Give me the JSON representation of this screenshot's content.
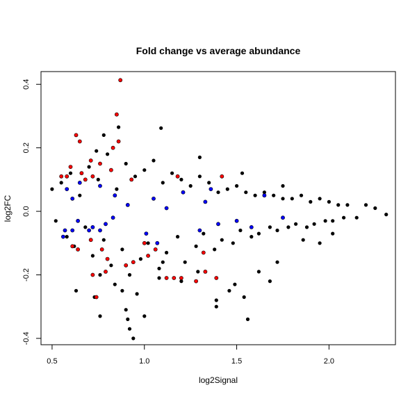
{
  "chart_data": {
    "type": "scatter",
    "title": "Fold change vs average abundance",
    "xlabel": "log2Signal",
    "ylabel": "log2FC",
    "xlim": [
      0.44,
      2.36
    ],
    "ylim": [
      -0.42,
      0.44
    ],
    "x_ticks": [
      {
        "value": 0.5,
        "label": "0.5"
      },
      {
        "value": 1.0,
        "label": "1.0"
      },
      {
        "value": 1.5,
        "label": "1.5"
      },
      {
        "value": 2.0,
        "label": "2.0"
      }
    ],
    "y_ticks": [
      {
        "value": -0.4,
        "label": "-0.4"
      },
      {
        "value": -0.2,
        "label": "-0.2"
      },
      {
        "value": 0.0,
        "label": "0.0"
      },
      {
        "value": 0.2,
        "label": "0.2"
      },
      {
        "value": 0.4,
        "label": "0.4"
      }
    ],
    "grid": false,
    "legend": "none",
    "colors": {
      "black": "#000000",
      "red": "#ff0000",
      "blue": "#0000ff"
    },
    "series": [
      {
        "color": "black",
        "points": [
          [
            0.5,
            0.07
          ],
          [
            0.52,
            -0.03
          ],
          [
            0.55,
            0.09
          ],
          [
            0.58,
            -0.08
          ],
          [
            0.6,
            0.12
          ],
          [
            0.62,
            -0.11
          ],
          [
            0.65,
            0.05
          ],
          [
            0.68,
            -0.05
          ],
          [
            0.7,
            0.14
          ],
          [
            0.72,
            -0.14
          ],
          [
            0.75,
            0.1
          ],
          [
            0.78,
            -0.09
          ],
          [
            0.8,
            0.18
          ],
          [
            0.82,
            -0.17
          ],
          [
            0.85,
            0.07
          ],
          [
            0.88,
            -0.12
          ],
          [
            0.9,
            0.15
          ],
          [
            0.92,
            -0.2
          ],
          [
            0.95,
            0.11
          ],
          [
            0.98,
            -0.15
          ],
          [
            1.0,
            0.13
          ],
          [
            1.02,
            -0.1
          ],
          [
            1.05,
            0.16
          ],
          [
            1.08,
            -0.18
          ],
          [
            1.1,
            0.09
          ],
          [
            1.12,
            -0.13
          ],
          [
            1.15,
            0.12
          ],
          [
            1.18,
            -0.08
          ],
          [
            1.2,
            0.1
          ],
          [
            1.22,
            -0.16
          ],
          [
            1.25,
            0.08
          ],
          [
            1.28,
            -0.11
          ],
          [
            1.3,
            0.11
          ],
          [
            1.32,
            -0.07
          ],
          [
            1.35,
            0.09
          ],
          [
            1.38,
            -0.12
          ],
          [
            1.4,
            0.06
          ],
          [
            1.42,
            -0.09
          ],
          [
            1.45,
            0.07
          ],
          [
            1.48,
            -0.1
          ],
          [
            1.5,
            0.08
          ],
          [
            1.52,
            -0.06
          ],
          [
            1.55,
            0.06
          ],
          [
            1.58,
            -0.08
          ],
          [
            1.6,
            0.05
          ],
          [
            1.62,
            -0.07
          ],
          [
            1.65,
            0.06
          ],
          [
            1.68,
            -0.05
          ],
          [
            1.7,
            0.05
          ],
          [
            1.72,
            -0.06
          ],
          [
            1.75,
            0.04
          ],
          [
            1.78,
            -0.05
          ],
          [
            1.8,
            0.04
          ],
          [
            1.82,
            -0.04
          ],
          [
            1.85,
            0.05
          ],
          [
            1.88,
            -0.05
          ],
          [
            1.9,
            0.03
          ],
          [
            1.92,
            -0.04
          ],
          [
            1.95,
            0.04
          ],
          [
            1.98,
            -0.03
          ],
          [
            2.0,
            0.03
          ],
          [
            2.02,
            -0.03
          ],
          [
            2.05,
            0.02
          ],
          [
            2.08,
            -0.02
          ],
          [
            2.1,
            0.02
          ],
          [
            2.15,
            -0.02
          ],
          [
            2.2,
            0.02
          ],
          [
            2.25,
            0.01
          ],
          [
            2.31,
            -0.01
          ],
          [
            0.86,
            0.265
          ],
          [
            1.09,
            0.262
          ],
          [
            0.78,
            0.24
          ],
          [
            0.74,
            0.19
          ],
          [
            1.3,
            0.17
          ],
          [
            1.53,
            0.12
          ],
          [
            1.75,
            0.08
          ],
          [
            0.73,
            -0.27
          ],
          [
            0.63,
            -0.25
          ],
          [
            0.76,
            -0.2
          ],
          [
            0.84,
            -0.23
          ],
          [
            0.88,
            -0.25
          ],
          [
            1.08,
            -0.21
          ],
          [
            1.2,
            -0.22
          ],
          [
            1.29,
            -0.19
          ],
          [
            1.39,
            -0.28
          ],
          [
            1.39,
            -0.3
          ],
          [
            1.49,
            -0.23
          ],
          [
            1.54,
            -0.27
          ],
          [
            1.68,
            -0.22
          ],
          [
            1.72,
            -0.16
          ],
          [
            1.86,
            -0.09
          ],
          [
            1.95,
            -0.1
          ],
          [
            2.02,
            -0.07
          ],
          [
            0.76,
            -0.33
          ],
          [
            0.9,
            -0.31
          ],
          [
            0.91,
            -0.34
          ],
          [
            0.92,
            -0.37
          ],
          [
            0.94,
            -0.4
          ],
          [
            1.0,
            -0.33
          ],
          [
            0.96,
            -0.26
          ],
          [
            1.56,
            -0.34
          ],
          [
            1.46,
            -0.25
          ],
          [
            1.62,
            -0.19
          ],
          [
            1.1,
            -0.16
          ]
        ]
      },
      {
        "color": "red",
        "points": [
          [
            0.87,
            0.413
          ],
          [
            0.85,
            0.305
          ],
          [
            0.63,
            0.24
          ],
          [
            0.65,
            0.22
          ],
          [
            0.83,
            0.2
          ],
          [
            0.86,
            0.22
          ],
          [
            0.71,
            0.16
          ],
          [
            0.76,
            0.15
          ],
          [
            0.6,
            0.14
          ],
          [
            0.66,
            0.12
          ],
          [
            0.72,
            0.11
          ],
          [
            0.55,
            0.11
          ],
          [
            0.58,
            0.11
          ],
          [
            0.82,
            0.13
          ],
          [
            0.93,
            0.1
          ],
          [
            1.18,
            0.11
          ],
          [
            1.42,
            0.11
          ],
          [
            0.68,
            0.1
          ],
          [
            0.61,
            -0.11
          ],
          [
            0.64,
            -0.12
          ],
          [
            0.71,
            -0.09
          ],
          [
            0.77,
            -0.12
          ],
          [
            0.8,
            -0.15
          ],
          [
            0.9,
            -0.17
          ],
          [
            0.74,
            -0.27
          ],
          [
            0.72,
            -0.2
          ],
          [
            0.79,
            -0.19
          ],
          [
            1.02,
            -0.14
          ],
          [
            1.06,
            -0.12
          ],
          [
            1.12,
            -0.21
          ],
          [
            1.16,
            -0.21
          ],
          [
            1.2,
            -0.21
          ],
          [
            1.28,
            -0.22
          ],
          [
            1.33,
            -0.19
          ],
          [
            1.39,
            -0.21
          ],
          [
            1.32,
            -0.13
          ],
          [
            1.0,
            -0.1
          ],
          [
            0.94,
            -0.16
          ]
        ]
      },
      {
        "color": "blue",
        "points": [
          [
            0.56,
            -0.08
          ],
          [
            0.57,
            -0.06
          ],
          [
            0.61,
            -0.06
          ],
          [
            0.64,
            -0.03
          ],
          [
            0.7,
            -0.06
          ],
          [
            0.72,
            -0.05
          ],
          [
            0.76,
            -0.06
          ],
          [
            0.79,
            -0.04
          ],
          [
            0.83,
            -0.02
          ],
          [
            0.58,
            0.07
          ],
          [
            0.61,
            0.04
          ],
          [
            0.65,
            0.09
          ],
          [
            0.76,
            0.08
          ],
          [
            0.84,
            0.05
          ],
          [
            0.91,
            0.02
          ],
          [
            1.05,
            0.04
          ],
          [
            1.12,
            0.01
          ],
          [
            1.21,
            0.06
          ],
          [
            1.33,
            0.03
          ],
          [
            1.36,
            0.07
          ],
          [
            1.4,
            -0.04
          ],
          [
            1.5,
            -0.03
          ],
          [
            1.58,
            -0.05
          ],
          [
            1.65,
            0.05
          ],
          [
            1.01,
            -0.07
          ],
          [
            1.07,
            -0.1
          ],
          [
            1.3,
            -0.06
          ],
          [
            1.75,
            -0.02
          ]
        ]
      }
    ]
  }
}
